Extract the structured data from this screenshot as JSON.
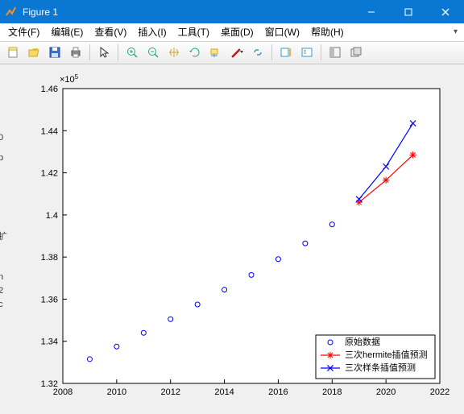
{
  "window": {
    "title": "Figure 1"
  },
  "menu": {
    "file": "文件(F)",
    "edit": "编辑(E)",
    "view": "查看(V)",
    "insert": "插入(I)",
    "tools": "工具(T)",
    "desktop": "桌面(D)",
    "window": "窗口(W)",
    "help": "帮助(H)"
  },
  "chart": {
    "type": "scatter+line",
    "exponent_label": "×10",
    "exponent_sup": "5",
    "xlim": [
      2008,
      2022
    ],
    "ylim": [
      1.32,
      1.46
    ],
    "xtick_step": 2,
    "ytick_step": 0.02,
    "xtick_labels": [
      "2008",
      "2010",
      "2012",
      "2014",
      "2016",
      "2018",
      "2020",
      "2022"
    ],
    "ytick_labels": [
      "1.32",
      "1.34",
      "1.36",
      "1.38",
      "1.4",
      "1.42",
      "1.44",
      "1.46"
    ],
    "tick_fontsize": 11,
    "background_color": "#ffffff",
    "axis_color": "#000000",
    "grid_color": "#e0e0e0",
    "series": [
      {
        "name": "原始数据",
        "type": "scatter",
        "color": "#0000ff",
        "marker": "circle",
        "marker_size": 5,
        "line": false,
        "x": [
          2009,
          2010,
          2011,
          2012,
          2013,
          2014,
          2015,
          2016,
          2017,
          2018
        ],
        "y": [
          1.3315,
          1.3375,
          1.344,
          1.3505,
          1.3575,
          1.3645,
          1.3715,
          1.379,
          1.3865,
          1.3955
        ]
      },
      {
        "name": "三次hermite插值预测",
        "type": "line",
        "color": "#ff0000",
        "marker": "star",
        "marker_size": 6,
        "line": true,
        "line_width": 1.2,
        "x": [
          2019,
          2020,
          2021
        ],
        "y": [
          1.406,
          1.4165,
          1.4285
        ]
      },
      {
        "name": "三次样条插值预测",
        "type": "line",
        "color": "#0000ff",
        "marker": "x",
        "marker_size": 6,
        "line": true,
        "line_width": 1.2,
        "x": [
          2019,
          2020,
          2021
        ],
        "y": [
          1.4075,
          1.423,
          1.4435
        ]
      }
    ],
    "legend": {
      "position": "bottom-right",
      "border_color": "#000000",
      "fontsize": 11,
      "items": [
        "原始数据",
        "三次hermite插值预测",
        "三次样条插值预测"
      ]
    }
  },
  "left_cut_labels": {
    "a": "0",
    "b": "p",
    "c": "扩",
    "d": "n",
    "e": "2",
    "f": "c"
  }
}
